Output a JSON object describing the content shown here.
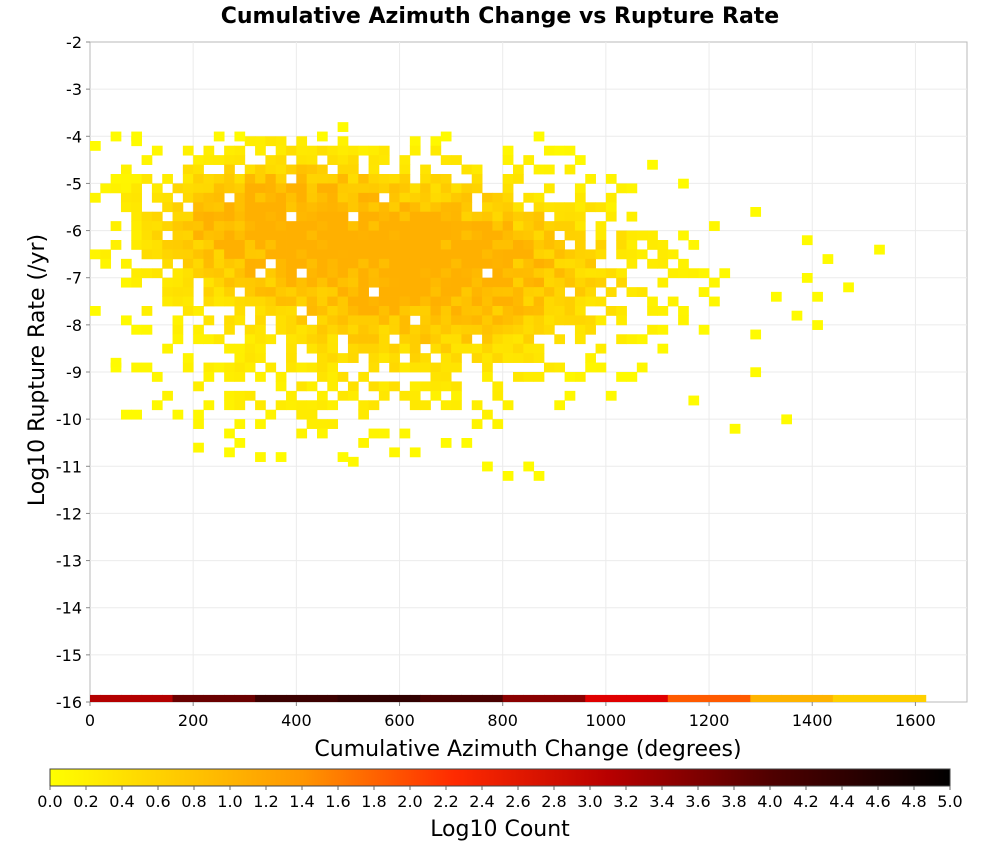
{
  "chart_data": {
    "type": "heatmap",
    "title": "Cumulative Azimuth Change vs Rupture Rate",
    "xlabel": "Cumulative Azimuth Change (degrees)",
    "ylabel": "Log10 Rupture Rate (/yr)",
    "xlim": [
      0,
      1700
    ],
    "ylim": [
      -16,
      -2
    ],
    "x_ticks": [
      "0",
      "200",
      "400",
      "600",
      "800",
      "1000",
      "1200",
      "1400",
      "1600"
    ],
    "y_ticks": [
      "-2",
      "-3",
      "-4",
      "-5",
      "-6",
      "-7",
      "-8",
      "-9",
      "-10",
      "-11",
      "-12",
      "-13",
      "-14",
      "-15",
      "-16"
    ],
    "grid": true,
    "bin_width_x": 20,
    "bin_height_y": 0.2,
    "colorbar": {
      "label": "Log10 Count",
      "range": [
        0.0,
        5.0
      ],
      "ticks": [
        "0.0",
        "0.2",
        "0.4",
        "0.6",
        "0.8",
        "1.0",
        "1.2",
        "1.4",
        "1.6",
        "1.8",
        "2.0",
        "2.2",
        "2.4",
        "2.6",
        "2.8",
        "3.0",
        "3.2",
        "3.4",
        "3.6",
        "3.8",
        "4.0",
        "4.2",
        "4.4",
        "4.6",
        "4.8",
        "5.0"
      ],
      "colors": [
        "#ffff00",
        "#ffc800",
        "#ff8c00",
        "#ff2800",
        "#c00000",
        "#780000",
        "#000000"
      ]
    },
    "density_clusters": [
      {
        "center_x": 560,
        "center_y": -6.6,
        "spread_x": 260,
        "spread_y": 1.2,
        "peak": 1.0
      },
      {
        "center_x": 340,
        "center_y": -5.6,
        "spread_x": 160,
        "spread_y": 0.9,
        "peak": 0.8
      },
      {
        "center_x": 750,
        "center_y": -7.0,
        "spread_x": 230,
        "spread_y": 1.3,
        "peak": 0.6
      },
      {
        "center_x": 450,
        "center_y": -9.5,
        "spread_x": 250,
        "spread_y": 0.9,
        "peak": 0.25
      }
    ],
    "scattered_cells": [
      {
        "x": 10,
        "y": -4.2,
        "v": 0.05
      },
      {
        "x": 50,
        "y": -4.0,
        "v": 0.05
      },
      {
        "x": 90,
        "y": -4.0,
        "v": 0.05
      },
      {
        "x": 250,
        "y": -4.0,
        "v": 0.1
      },
      {
        "x": 290,
        "y": -4.0,
        "v": 0.05
      },
      {
        "x": 450,
        "y": -4.0,
        "v": 0.05
      },
      {
        "x": 490,
        "y": -3.8,
        "v": 0.05
      },
      {
        "x": 690,
        "y": -4.0,
        "v": 0.05
      },
      {
        "x": 870,
        "y": -4.0,
        "v": 0.05
      },
      {
        "x": 1090,
        "y": -4.6,
        "v": 0.05
      },
      {
        "x": 1150,
        "y": -5.0,
        "v": 0.05
      },
      {
        "x": 1290,
        "y": -5.6,
        "v": 0.05
      },
      {
        "x": 1390,
        "y": -6.2,
        "v": 0.05
      },
      {
        "x": 1430,
        "y": -6.6,
        "v": 0.05
      },
      {
        "x": 1530,
        "y": -6.4,
        "v": 0.05
      },
      {
        "x": 1390,
        "y": -7.0,
        "v": 0.05
      },
      {
        "x": 1470,
        "y": -7.2,
        "v": 0.05
      },
      {
        "x": 1410,
        "y": -7.4,
        "v": 0.05
      },
      {
        "x": 1330,
        "y": -7.4,
        "v": 0.05
      },
      {
        "x": 1370,
        "y": -7.8,
        "v": 0.05
      },
      {
        "x": 1410,
        "y": -8.0,
        "v": 0.05
      },
      {
        "x": 1290,
        "y": -8.2,
        "v": 0.05
      },
      {
        "x": 1290,
        "y": -9.0,
        "v": 0.05
      },
      {
        "x": 1350,
        "y": -10.0,
        "v": 0.05
      },
      {
        "x": 1250,
        "y": -10.2,
        "v": 0.05
      },
      {
        "x": 1170,
        "y": -9.6,
        "v": 0.05
      },
      {
        "x": 50,
        "y": -8.8,
        "v": 0.05
      },
      {
        "x": 210,
        "y": -10.6,
        "v": 0.1
      },
      {
        "x": 330,
        "y": -10.8,
        "v": 0.1
      },
      {
        "x": 370,
        "y": -10.8,
        "v": 0.05
      },
      {
        "x": 490,
        "y": -10.8,
        "v": 0.05
      },
      {
        "x": 850,
        "y": -11.0,
        "v": 0.05
      },
      {
        "x": 870,
        "y": -11.2,
        "v": 0.05
      },
      {
        "x": 810,
        "y": -11.2,
        "v": 0.05
      },
      {
        "x": 770,
        "y": -11.0,
        "v": 0.05
      }
    ],
    "bottom_strip": {
      "y_range": [
        -16.0,
        -15.85
      ],
      "x_range": [
        0,
        1620
      ],
      "colors": [
        "#b40000",
        "#6a0000",
        "#3c0000",
        "#300000",
        "#4a0000",
        "#8a0000",
        "#e00000",
        "#ff5a00",
        "#ffb400",
        "#ffd000"
      ]
    }
  }
}
